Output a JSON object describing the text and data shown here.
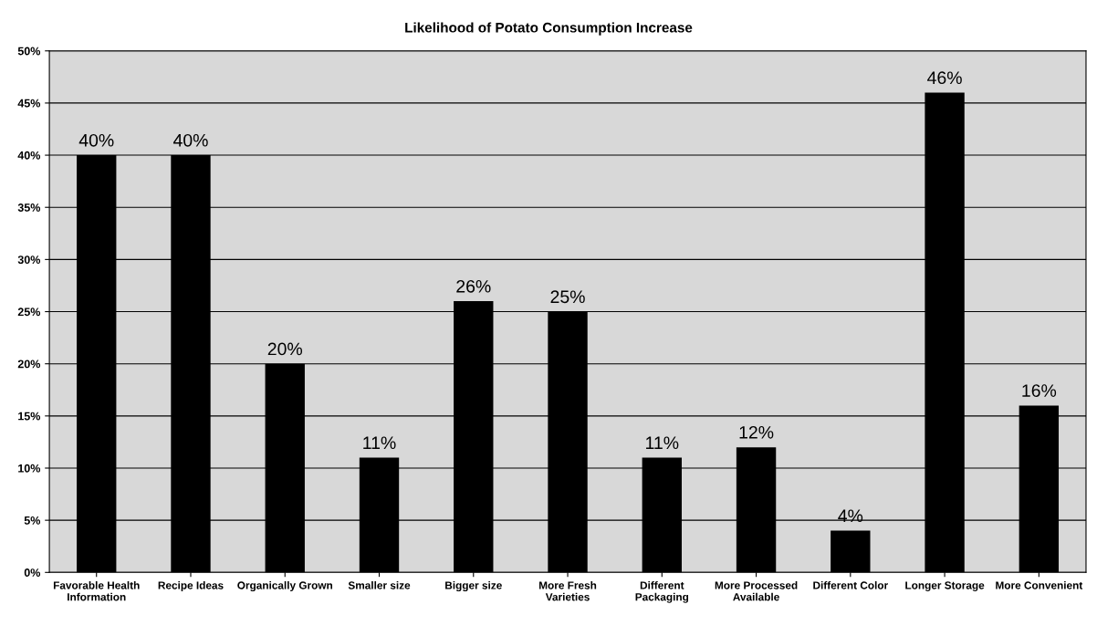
{
  "chart_data": {
    "type": "bar",
    "title": "Likelihood of Potato Consumption Increase",
    "categories": [
      "Favorable Health\nInformation",
      "Recipe Ideas",
      "Organically Grown",
      "Smaller size",
      "Bigger size",
      "More Fresh\nVarieties",
      "Different\nPackaging",
      "More Processed\nAvailable",
      "Different Color",
      "Longer Storage",
      "More Convenient"
    ],
    "values": [
      40,
      40,
      20,
      11,
      26,
      25,
      11,
      12,
      4,
      46,
      16
    ],
    "value_labels": [
      "40%",
      "40%",
      "20%",
      "11%",
      "26%",
      "25%",
      "11%",
      "12%",
      "4%",
      "46%",
      "16%"
    ],
    "color": "#000000",
    "ylim": [
      0,
      50
    ],
    "yticks": [
      {
        "value": 0,
        "label": "0%"
      },
      {
        "value": 5,
        "label": "5%"
      },
      {
        "value": 10,
        "label": "10%"
      },
      {
        "value": 15,
        "label": "15%"
      },
      {
        "value": 20,
        "label": "20%"
      },
      {
        "value": 25,
        "label": "25%"
      },
      {
        "value": 30,
        "label": "30%"
      },
      {
        "value": 35,
        "label": "35%"
      },
      {
        "value": 40,
        "label": "40%"
      },
      {
        "value": 45,
        "label": "45%"
      },
      {
        "value": 50,
        "label": "50%"
      }
    ],
    "grid": "y"
  }
}
